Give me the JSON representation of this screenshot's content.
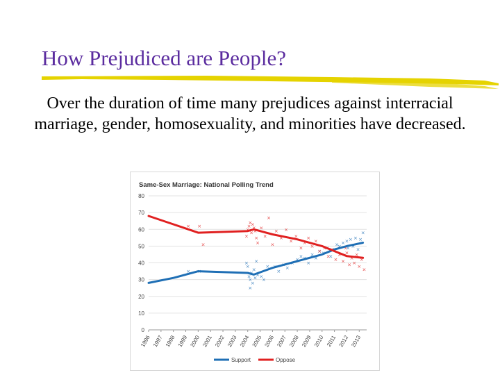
{
  "slide": {
    "title": "How Prejudiced are People?",
    "body": "Over the duration of time many prejudices against interracial marriage, gender, homosexuality, and minorities have decreased."
  },
  "colors": {
    "title": "#5b2c9f",
    "rule": "#e5d300",
    "support": "#1f6fb5",
    "oppose": "#e02020",
    "grid": "#e3e3e3"
  },
  "chart_data": {
    "type": "line",
    "title": "Same-Sex Marriage: National Polling Trend",
    "xlabel": "",
    "ylabel": "",
    "ylim": [
      0,
      80
    ],
    "yticks": [
      0,
      10,
      20,
      30,
      40,
      50,
      60,
      70,
      80
    ],
    "xticks": [
      "1996",
      "1997",
      "1998",
      "1999",
      "2000",
      "2001",
      "2002",
      "2003",
      "2004",
      "2005",
      "2006",
      "2007",
      "2008",
      "2009",
      "2010",
      "2011",
      "2012",
      "2013"
    ],
    "xlim": [
      1996,
      2013.6
    ],
    "grid": true,
    "legend_position": "bottom",
    "series": [
      {
        "name": "Support",
        "color": "#1f6fb5",
        "trend": [
          [
            1996,
            28
          ],
          [
            1998,
            31
          ],
          [
            2000,
            35
          ],
          [
            2004,
            34
          ],
          [
            2004.5,
            33
          ],
          [
            2006,
            37
          ],
          [
            2008,
            41
          ],
          [
            2010,
            45
          ],
          [
            2011,
            48
          ],
          [
            2012,
            50
          ],
          [
            2013.3,
            52
          ]
        ],
        "points": [
          [
            1999.2,
            35
          ],
          [
            2000.1,
            35
          ],
          [
            2003.9,
            40
          ],
          [
            2004.0,
            38
          ],
          [
            2004.1,
            32
          ],
          [
            2004.2,
            30
          ],
          [
            2004.3,
            34
          ],
          [
            2004.4,
            28
          ],
          [
            2004.5,
            36
          ],
          [
            2004.6,
            31
          ],
          [
            2004.7,
            41
          ],
          [
            2004.8,
            33
          ],
          [
            2005.1,
            32
          ],
          [
            2005.3,
            30
          ],
          [
            2005.6,
            38
          ],
          [
            2006.2,
            38
          ],
          [
            2006.5,
            35
          ],
          [
            2006.9,
            39
          ],
          [
            2007.2,
            37
          ],
          [
            2007.6,
            40
          ],
          [
            2008.0,
            42
          ],
          [
            2008.3,
            44
          ],
          [
            2008.6,
            43
          ],
          [
            2008.9,
            40
          ],
          [
            2009.2,
            45
          ],
          [
            2009.5,
            43
          ],
          [
            2009.8,
            47
          ],
          [
            2010.1,
            46
          ],
          [
            2010.4,
            49
          ],
          [
            2010.7,
            44
          ],
          [
            2011.0,
            48
          ],
          [
            2011.2,
            51
          ],
          [
            2011.4,
            50
          ],
          [
            2011.7,
            52
          ],
          [
            2012.0,
            53
          ],
          [
            2012.1,
            49
          ],
          [
            2012.3,
            54
          ],
          [
            2012.5,
            50
          ],
          [
            2012.7,
            55
          ],
          [
            2012.9,
            48
          ],
          [
            2013.1,
            54
          ],
          [
            2013.3,
            58
          ],
          [
            2004.2,
            25
          ]
        ]
      },
      {
        "name": "Oppose",
        "color": "#e02020",
        "trend": [
          [
            1996,
            68
          ],
          [
            1998,
            63
          ],
          [
            2000,
            58
          ],
          [
            2004,
            59
          ],
          [
            2004.5,
            60
          ],
          [
            2006,
            57
          ],
          [
            2008,
            54
          ],
          [
            2010,
            50
          ],
          [
            2011,
            47
          ],
          [
            2012,
            44
          ],
          [
            2013.3,
            43
          ]
        ],
        "points": [
          [
            1999.2,
            62
          ],
          [
            2000.1,
            62
          ],
          [
            2000.4,
            51
          ],
          [
            2003.9,
            56
          ],
          [
            2004.0,
            60
          ],
          [
            2004.1,
            62
          ],
          [
            2004.2,
            64
          ],
          [
            2004.3,
            58
          ],
          [
            2004.4,
            63
          ],
          [
            2004.5,
            61
          ],
          [
            2004.6,
            59
          ],
          [
            2004.7,
            55
          ],
          [
            2004.8,
            52
          ],
          [
            2005.1,
            61
          ],
          [
            2005.4,
            56
          ],
          [
            2005.7,
            67
          ],
          [
            2006.0,
            51
          ],
          [
            2006.3,
            59
          ],
          [
            2006.7,
            55
          ],
          [
            2007.1,
            60
          ],
          [
            2007.5,
            53
          ],
          [
            2007.9,
            56
          ],
          [
            2008.3,
            49
          ],
          [
            2008.6,
            52
          ],
          [
            2008.9,
            55
          ],
          [
            2009.2,
            50
          ],
          [
            2009.5,
            53
          ],
          [
            2009.8,
            47
          ],
          [
            2010.2,
            49
          ],
          [
            2010.5,
            44
          ],
          [
            2010.8,
            48
          ],
          [
            2011.1,
            42
          ],
          [
            2011.4,
            45
          ],
          [
            2011.7,
            41
          ],
          [
            2012.0,
            46
          ],
          [
            2012.2,
            39
          ],
          [
            2012.4,
            43
          ],
          [
            2012.6,
            40
          ],
          [
            2012.8,
            45
          ],
          [
            2013.0,
            38
          ],
          [
            2013.2,
            42
          ],
          [
            2013.4,
            36
          ],
          [
            2011.9,
            49
          ]
        ]
      }
    ]
  }
}
